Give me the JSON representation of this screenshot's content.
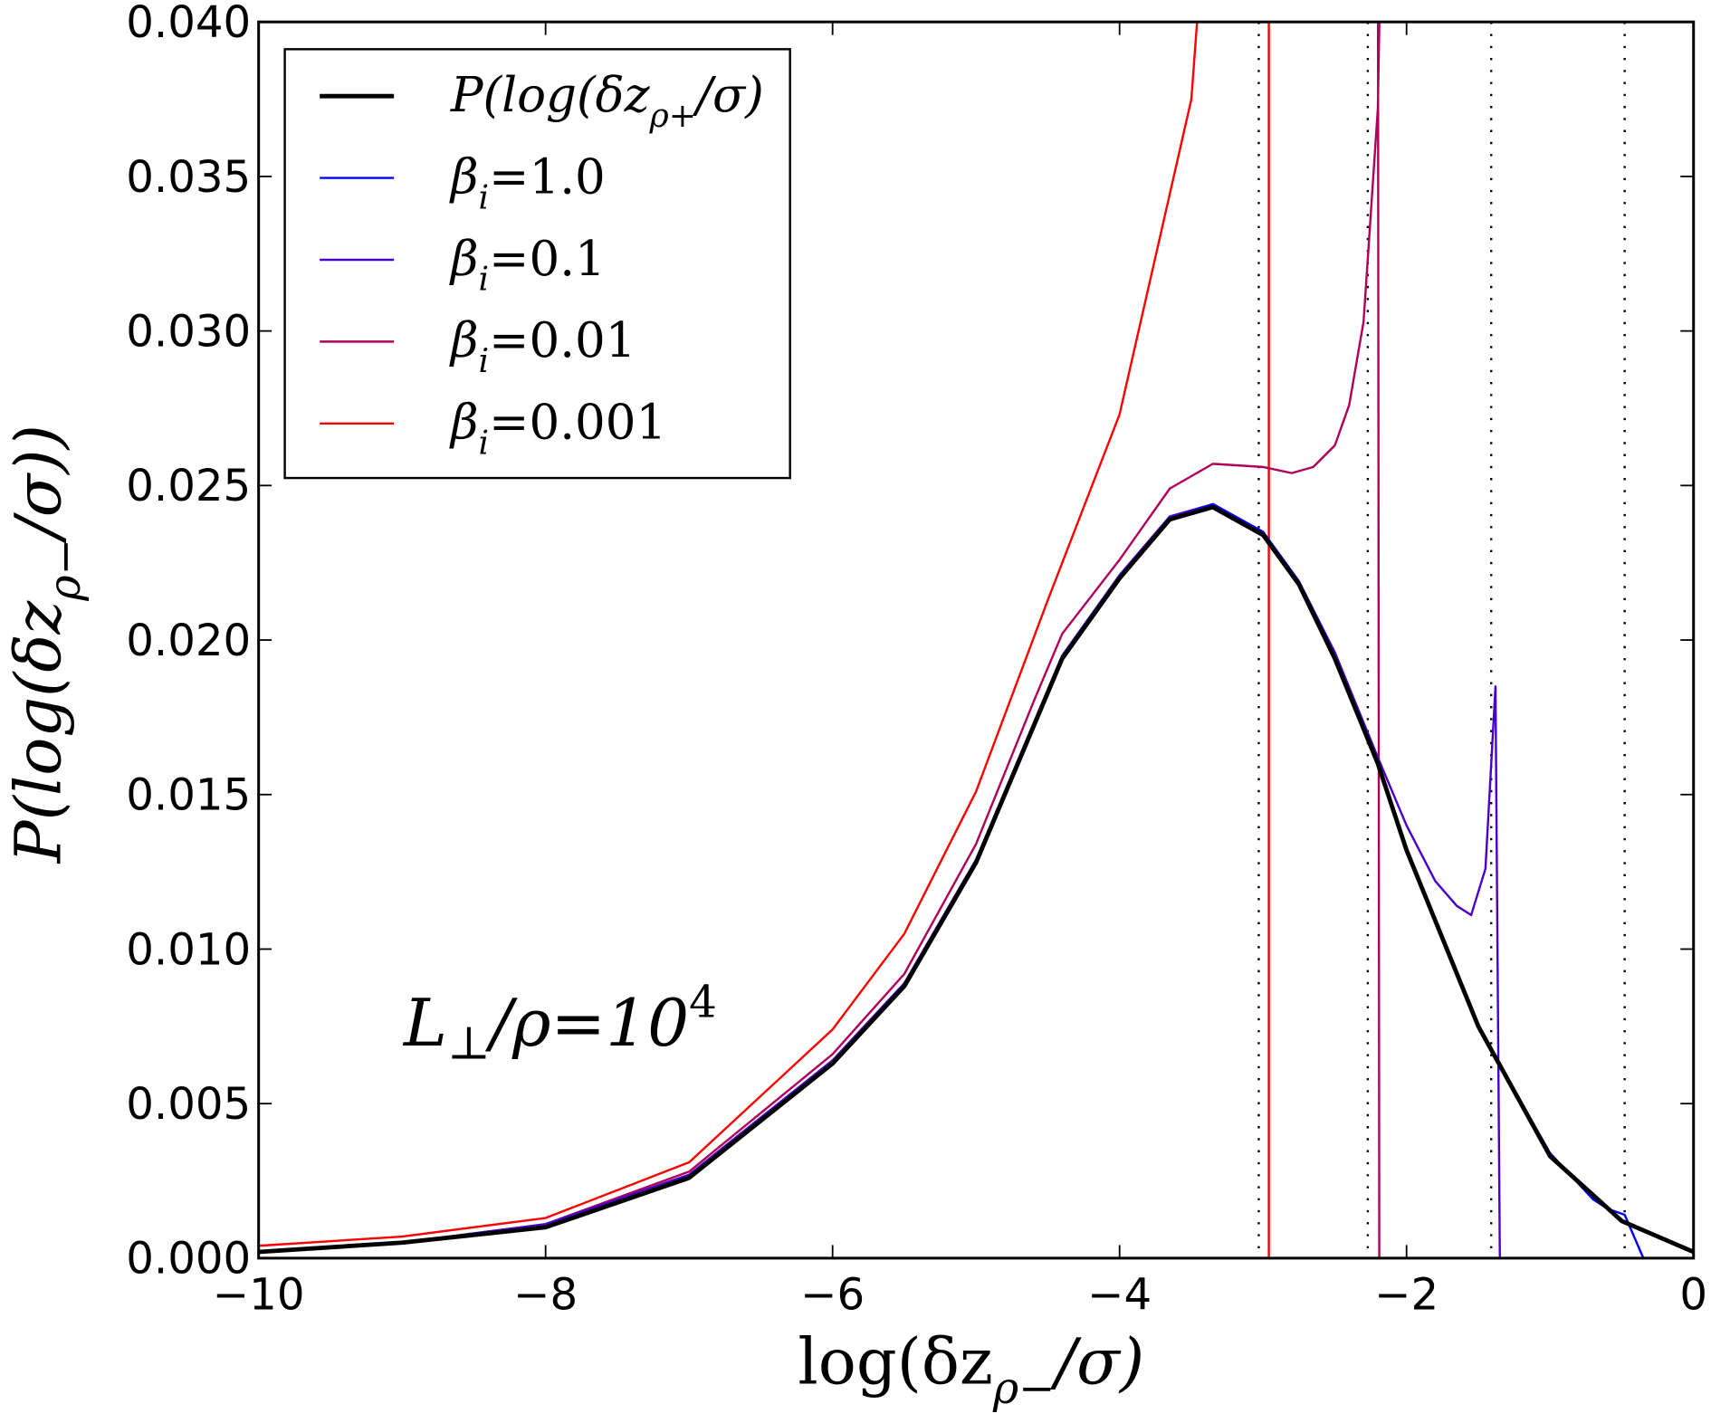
{
  "chart_data": {
    "type": "line",
    "xlabel": {
      "pre": "log(δz",
      "sub": "ρ−",
      "post": "/σ)"
    },
    "ylabel": {
      "pre": "P(log(δz",
      "sub": "ρ−",
      "post": "/σ))"
    },
    "xlim": [
      -10,
      0
    ],
    "ylim": [
      0,
      0.04
    ],
    "x_ticks": [
      "−10",
      "−8",
      "−6",
      "−4",
      "−2",
      "0"
    ],
    "x_tick_values": [
      -10,
      -8,
      -6,
      -4,
      -2,
      0
    ],
    "y_ticks": [
      "0.000",
      "0.005",
      "0.010",
      "0.015",
      "0.020",
      "0.025",
      "0.030",
      "0.035",
      "0.040"
    ],
    "y_tick_values": [
      0,
      0.005,
      0.01,
      0.015,
      0.02,
      0.025,
      0.03,
      0.035,
      0.04
    ],
    "grid": false,
    "legend_position": "top-left",
    "annotation": {
      "pre": "L",
      "sub": "⊥",
      "mid": "/ρ=10",
      "sup": "4"
    },
    "vertical_dotted_lines_x": [
      -3.03,
      -2.27,
      -1.41,
      -0.48
    ],
    "series": [
      {
        "label": {
          "pre": "P(log(δz",
          "sub": "ρ+",
          "post": "/σ)"
        },
        "color": "#000000",
        "width": 4,
        "x": [
          -10,
          -9,
          -8,
          -7,
          -6,
          -5.5,
          -5,
          -4.6,
          -4.4,
          -4,
          -3.65,
          -3.35,
          -3.0,
          -2.75,
          -2.5,
          -2.2,
          -2,
          -1.5,
          -1.0,
          -0.5,
          0
        ],
        "y": [
          0.0002,
          0.0005,
          0.001,
          0.0026,
          0.0063,
          0.0088,
          0.0128,
          0.0172,
          0.0194,
          0.022,
          0.0239,
          0.0243,
          0.0234,
          0.0218,
          0.0194,
          0.016,
          0.0132,
          0.0075,
          0.0033,
          0.0012,
          0.0002
        ]
      },
      {
        "label": {
          "pre": "β",
          "sub": "i",
          "post": "=1.0"
        },
        "color": "#0000ff",
        "width": 2,
        "x": [
          -10,
          -9,
          -8,
          -7,
          -6,
          -5.5,
          -5,
          -4.6,
          -4.4,
          -4,
          -3.65,
          -3.35,
          -3.0,
          -2.75,
          -2.5,
          -2.2,
          -2,
          -1.5,
          -1.0,
          -0.7,
          -0.6,
          -0.48,
          -0.35
        ],
        "y": [
          0.0002,
          0.0005,
          0.001,
          0.0026,
          0.0063,
          0.0088,
          0.0128,
          0.0172,
          0.0194,
          0.022,
          0.0239,
          0.0244,
          0.0235,
          0.0219,
          0.0195,
          0.016,
          0.0132,
          0.0075,
          0.0034,
          0.0019,
          0.0016,
          0.0014,
          0.0
        ]
      },
      {
        "label": {
          "pre": "β",
          "sub": "i",
          "post": "=0.1"
        },
        "color": "#4b00c8",
        "width": 2,
        "x": [
          -10,
          -9,
          -8,
          -7,
          -6,
          -5.5,
          -5,
          -4.6,
          -4.4,
          -4,
          -3.65,
          -3.35,
          -3.0,
          -2.75,
          -2.5,
          -2.2,
          -2,
          -1.8,
          -1.65,
          -1.55,
          -1.45,
          -1.38,
          -1.35
        ],
        "y": [
          0.0002,
          0.0005,
          0.0011,
          0.0027,
          0.0064,
          0.0089,
          0.0129,
          0.0173,
          0.0195,
          0.0221,
          0.024,
          0.0244,
          0.0235,
          0.0219,
          0.0196,
          0.0162,
          0.014,
          0.0122,
          0.0114,
          0.0111,
          0.0126,
          0.0185,
          0.0
        ]
      },
      {
        "label": {
          "pre": "β",
          "sub": "i",
          "post": "=0.01"
        },
        "color": "#b0005a",
        "width": 2,
        "x": [
          -10,
          -9,
          -8,
          -7,
          -6,
          -5.5,
          -5,
          -4.6,
          -4.4,
          -4,
          -3.65,
          -3.35,
          -3.0,
          -2.8,
          -2.65,
          -2.5,
          -2.4,
          -2.3,
          -2.2,
          -2.17,
          -2.2,
          -2.19
        ],
        "y": [
          0.0002,
          0.0005,
          0.0011,
          0.0028,
          0.0066,
          0.0092,
          0.0134,
          0.018,
          0.0202,
          0.0226,
          0.0249,
          0.0257,
          0.0256,
          0.0254,
          0.0256,
          0.0263,
          0.0276,
          0.0303,
          0.0372,
          0.045,
          0.045,
          0.0
        ]
      },
      {
        "label": {
          "pre": "β",
          "sub": "i",
          "post": "=0.001"
        },
        "color": "#ff0000",
        "width": 2,
        "x": [
          -10,
          -9,
          -8,
          -7,
          -6,
          -5.5,
          -5,
          -4.5,
          -4,
          -3.75,
          -3.5,
          -3.38,
          -2.96,
          -2.96
        ],
        "y": [
          0.0004,
          0.0007,
          0.0013,
          0.0031,
          0.0074,
          0.0105,
          0.0151,
          0.0213,
          0.0273,
          0.0324,
          0.0375,
          0.045,
          0.045,
          0.0
        ]
      }
    ]
  }
}
